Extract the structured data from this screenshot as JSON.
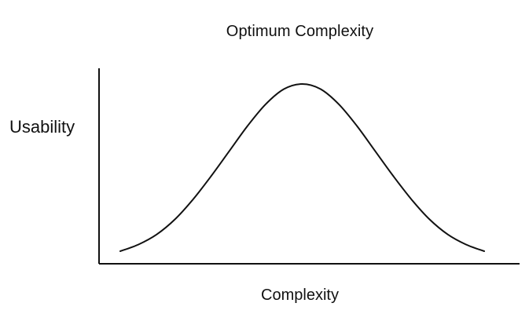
{
  "chart_data": {
    "type": "line",
    "title": "Optimum Complexity",
    "xlabel": "Complexity",
    "ylabel": "Usability",
    "x_ticks": [],
    "y_ticks": [],
    "grid": false,
    "legend": "none",
    "series": [
      {
        "points": [
          {
            "x": 0.0,
            "y": 0.0
          },
          {
            "x": 0.05,
            "y": 0.04
          },
          {
            "x": 0.1,
            "y": 0.1
          },
          {
            "x": 0.15,
            "y": 0.19
          },
          {
            "x": 0.2,
            "y": 0.31
          },
          {
            "x": 0.25,
            "y": 0.45
          },
          {
            "x": 0.3,
            "y": 0.6
          },
          {
            "x": 0.35,
            "y": 0.75
          },
          {
            "x": 0.4,
            "y": 0.88
          },
          {
            "x": 0.45,
            "y": 0.97
          },
          {
            "x": 0.5,
            "y": 1.0
          },
          {
            "x": 0.55,
            "y": 0.97
          },
          {
            "x": 0.6,
            "y": 0.88
          },
          {
            "x": 0.65,
            "y": 0.75
          },
          {
            "x": 0.7,
            "y": 0.6
          },
          {
            "x": 0.75,
            "y": 0.45
          },
          {
            "x": 0.8,
            "y": 0.31
          },
          {
            "x": 0.85,
            "y": 0.19
          },
          {
            "x": 0.9,
            "y": 0.1
          },
          {
            "x": 0.95,
            "y": 0.04
          },
          {
            "x": 1.0,
            "y": 0.0
          }
        ]
      }
    ]
  }
}
